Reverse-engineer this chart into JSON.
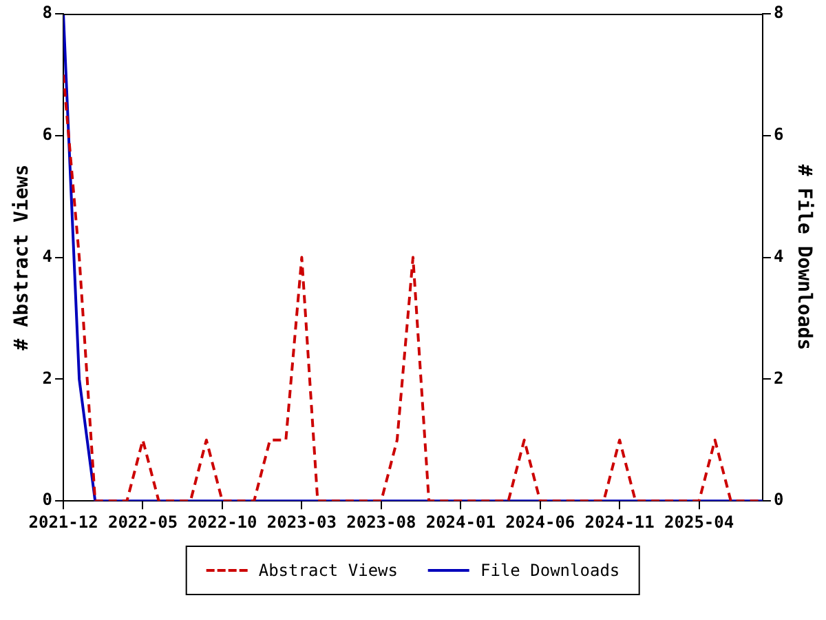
{
  "chart_data": {
    "type": "line",
    "ylabel": "# Abstract Views",
    "y2label": "# File Downloads",
    "x": [
      "2021-12",
      "2022-01",
      "2022-02",
      "2022-03",
      "2022-04",
      "2022-05",
      "2022-06",
      "2022-07",
      "2022-08",
      "2022-09",
      "2022-10",
      "2022-11",
      "2022-12",
      "2023-01",
      "2023-02",
      "2023-03",
      "2023-04",
      "2023-05",
      "2023-06",
      "2023-07",
      "2023-08",
      "2023-09",
      "2023-10",
      "2023-11",
      "2023-12",
      "2024-01",
      "2024-02",
      "2024-03",
      "2024-04",
      "2024-05",
      "2024-06",
      "2024-07",
      "2024-08",
      "2024-09",
      "2024-10",
      "2024-11",
      "2024-12",
      "2025-01",
      "2025-02",
      "2025-03",
      "2025-04",
      "2025-05",
      "2025-06",
      "2025-07",
      "2025-08"
    ],
    "series": [
      {
        "name": "Abstract Views",
        "color": "#cc0000",
        "line_style": "dashed",
        "values": [
          7,
          4,
          0,
          0,
          0,
          1,
          0,
          0,
          0,
          1,
          0,
          0,
          0,
          1,
          1,
          4,
          0,
          0,
          0,
          0,
          0,
          1,
          4,
          0,
          0,
          0,
          0,
          0,
          0,
          1,
          0,
          0,
          0,
          0,
          0,
          1,
          0,
          0,
          0,
          0,
          0,
          1,
          0,
          0,
          0
        ]
      },
      {
        "name": "File Downloads",
        "color": "#0000bb",
        "line_style": "solid",
        "axis": "y2",
        "values": [
          8,
          2,
          0,
          0,
          0,
          0,
          0,
          0,
          0,
          0,
          0,
          0,
          0,
          0,
          0,
          0,
          0,
          0,
          0,
          0,
          0,
          0,
          0,
          0,
          0,
          0,
          0,
          0,
          0,
          0,
          0,
          0,
          0,
          0,
          0,
          0,
          0,
          0,
          0,
          0,
          0,
          0,
          0,
          0,
          0
        ]
      }
    ],
    "xlim": [
      "2021-12",
      "2025-08"
    ],
    "xticks": [
      "2021-12",
      "2022-05",
      "2022-10",
      "2023-03",
      "2023-08",
      "2024-01",
      "2024-06",
      "2024-11",
      "2025-04"
    ],
    "ylim": [
      0,
      8
    ],
    "yticks": [
      0,
      2,
      4,
      6,
      8
    ],
    "y2lim": [
      0,
      8
    ],
    "y2ticks": [
      0,
      2,
      4,
      6,
      8
    ],
    "grid": false,
    "legend": "bottom",
    "marker": "none"
  }
}
